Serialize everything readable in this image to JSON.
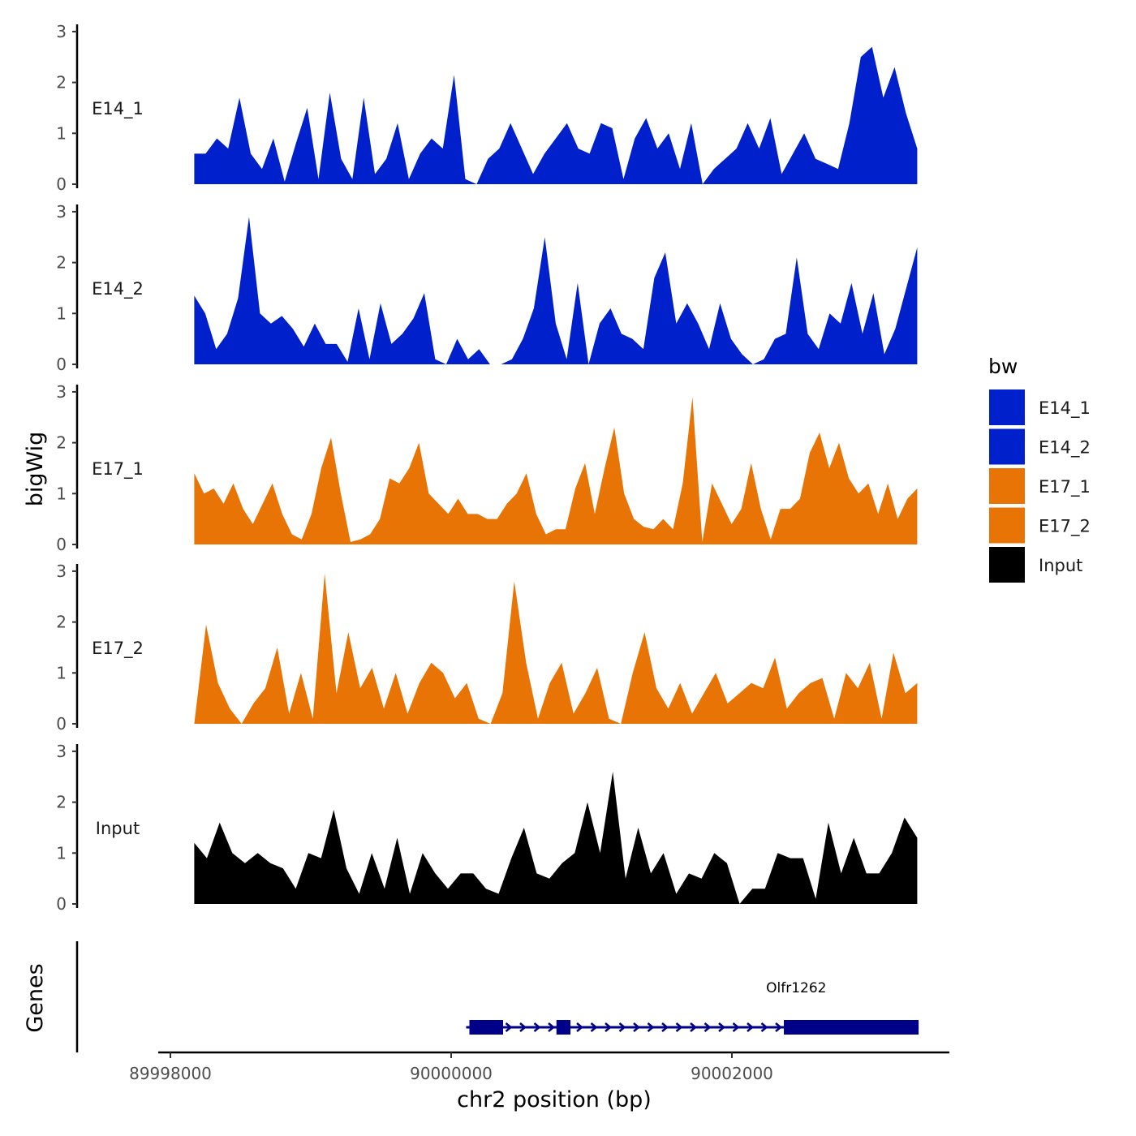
{
  "chart_data": {
    "type": "area",
    "title": "",
    "ylabel": "bigWig",
    "xlabel": "chr2 position (bp)",
    "genes_label": "Genes",
    "x_range": [
      89998170,
      90003320
    ],
    "xlim": [
      89997900,
      90003600
    ],
    "ylim": [
      0,
      3
    ],
    "y_ticks": [
      {
        "value": 0,
        "label": "0"
      },
      {
        "value": 1,
        "label": "1"
      },
      {
        "value": 2,
        "label": "2"
      },
      {
        "value": 3,
        "label": "3"
      }
    ],
    "x_ticks": [
      {
        "value": 89998000,
        "label": "89998000"
      },
      {
        "value": 90000000,
        "label": "90000000"
      },
      {
        "value": 90002000,
        "label": "90002000"
      }
    ],
    "series": [
      {
        "name": "E14_1",
        "color": "#0020cc",
        "values": [
          0.6,
          0.6,
          0.9,
          0.7,
          1.7,
          0.6,
          0.3,
          0.9,
          0.05,
          0.8,
          1.5,
          0.1,
          1.8,
          0.5,
          0.1,
          1.7,
          0.2,
          0.5,
          1.2,
          0.1,
          0.6,
          0.9,
          0.7,
          2.15,
          0.1,
          0,
          0.5,
          0.7,
          1.2,
          0.7,
          0.2,
          0.6,
          0.9,
          1.2,
          0.7,
          0.6,
          1.2,
          1.1,
          0.1,
          0.9,
          1.3,
          0.7,
          1.0,
          0.3,
          1.2,
          0.0,
          0.3,
          0.5,
          0.7,
          1.2,
          0.7,
          1.3,
          0.2,
          0.6,
          1.0,
          0.5,
          0.4,
          0.3,
          1.2,
          2.5,
          2.7,
          1.7,
          2.3,
          1.4,
          0.7
        ]
      },
      {
        "name": "E14_2",
        "color": "#0020cc",
        "values": [
          1.35,
          1.0,
          0.3,
          0.6,
          1.3,
          2.9,
          1.0,
          0.8,
          0.95,
          0.7,
          0.35,
          0.8,
          0.4,
          0.4,
          0.05,
          1.1,
          0.1,
          1.2,
          0.4,
          0.6,
          0.9,
          1.4,
          0.1,
          0,
          0.5,
          0.1,
          0.3,
          0.0,
          0,
          0.1,
          0.5,
          1.1,
          2.5,
          0.8,
          0.1,
          1.6,
          0.0,
          0.8,
          1.1,
          0.6,
          0.5,
          0.3,
          1.7,
          2.2,
          0.8,
          1.2,
          0.8,
          0.3,
          1.2,
          0.5,
          0.2,
          0.0,
          0.1,
          0.5,
          0.6,
          2.1,
          0.6,
          0.3,
          1.0,
          0.8,
          1.6,
          0.6,
          1.4,
          0.2,
          0.7,
          1.5,
          2.3
        ]
      },
      {
        "name": "E17_1",
        "color": "#e87406",
        "values": [
          1.4,
          1.0,
          1.1,
          0.8,
          1.2,
          0.7,
          0.4,
          0.8,
          1.2,
          0.6,
          0.2,
          0.1,
          0.6,
          1.5,
          2.1,
          1.0,
          0.05,
          0.1,
          0.2,
          0.5,
          1.3,
          1.2,
          1.5,
          2.0,
          1.0,
          0.8,
          0.6,
          0.9,
          0.6,
          0.6,
          0.5,
          0.5,
          0.8,
          1.0,
          1.4,
          0.6,
          0.2,
          0.3,
          0.3,
          1.1,
          1.6,
          0.6,
          1.5,
          2.3,
          1.0,
          0.5,
          0.35,
          0.3,
          0.5,
          0.3,
          1.2,
          2.9,
          0.05,
          1.2,
          0.8,
          0.4,
          0.7,
          1.6,
          0.7,
          0.1,
          0.7,
          0.7,
          0.9,
          1.8,
          2.2,
          1.5,
          2.0,
          1.3,
          1.0,
          1.2,
          0.6,
          1.2,
          0.5,
          0.9,
          1.1
        ]
      },
      {
        "name": "E17_2",
        "color": "#e87406",
        "values": [
          0.0,
          1.95,
          0.8,
          0.3,
          0.0,
          0.4,
          0.7,
          1.5,
          0.2,
          1.0,
          0.1,
          2.95,
          0.6,
          1.8,
          0.7,
          1.1,
          0.3,
          1.0,
          0.2,
          0.8,
          1.2,
          1.0,
          0.5,
          0.8,
          0.1,
          0.0,
          0.6,
          2.8,
          1.2,
          0.1,
          0.8,
          1.2,
          0.2,
          0.6,
          1.1,
          0.1,
          0.0,
          1.0,
          1.8,
          0.7,
          0.3,
          0.8,
          0.2,
          0.6,
          1.0,
          0.4,
          0.6,
          0.8,
          0.7,
          1.3,
          0.3,
          0.6,
          0.8,
          0.9,
          0.1,
          1.0,
          0.7,
          1.2,
          0.1,
          1.4,
          0.6,
          0.8
        ]
      },
      {
        "name": "Input",
        "color": "#000000",
        "values": [
          1.2,
          0.9,
          1.6,
          1.0,
          0.8,
          1.0,
          0.8,
          0.7,
          0.3,
          1.0,
          0.9,
          1.85,
          0.7,
          0.2,
          1.0,
          0.3,
          1.3,
          0.2,
          1.0,
          0.6,
          0.3,
          0.6,
          0.6,
          0.3,
          0.2,
          0.9,
          1.5,
          0.6,
          0.5,
          0.8,
          1.0,
          2.0,
          1.0,
          2.6,
          0.5,
          1.5,
          0.6,
          1.0,
          0.2,
          0.6,
          0.5,
          1.0,
          0.8,
          0.0,
          0.3,
          0.3,
          1.0,
          0.9,
          0.9,
          0.1,
          1.6,
          0.6,
          1.3,
          0.6,
          0.6,
          1.0,
          1.7,
          1.3
        ]
      }
    ],
    "legend": {
      "title": "bw",
      "position": "right",
      "entries": [
        {
          "label": "E14_1",
          "color": "#0020cc"
        },
        {
          "label": "E14_2",
          "color": "#0020cc"
        },
        {
          "label": "E17_1",
          "color": "#e87406"
        },
        {
          "label": "E17_2",
          "color": "#e87406"
        },
        {
          "label": "Input",
          "color": "#000000"
        }
      ]
    },
    "gene": {
      "name": "Olfr1262",
      "color": "#000088",
      "start": 90000130,
      "end": 90003330,
      "strand": "+",
      "exons": [
        [
          90000130,
          90000370
        ],
        [
          90000750,
          90000850
        ],
        [
          90002370,
          90003330
        ]
      ]
    }
  }
}
